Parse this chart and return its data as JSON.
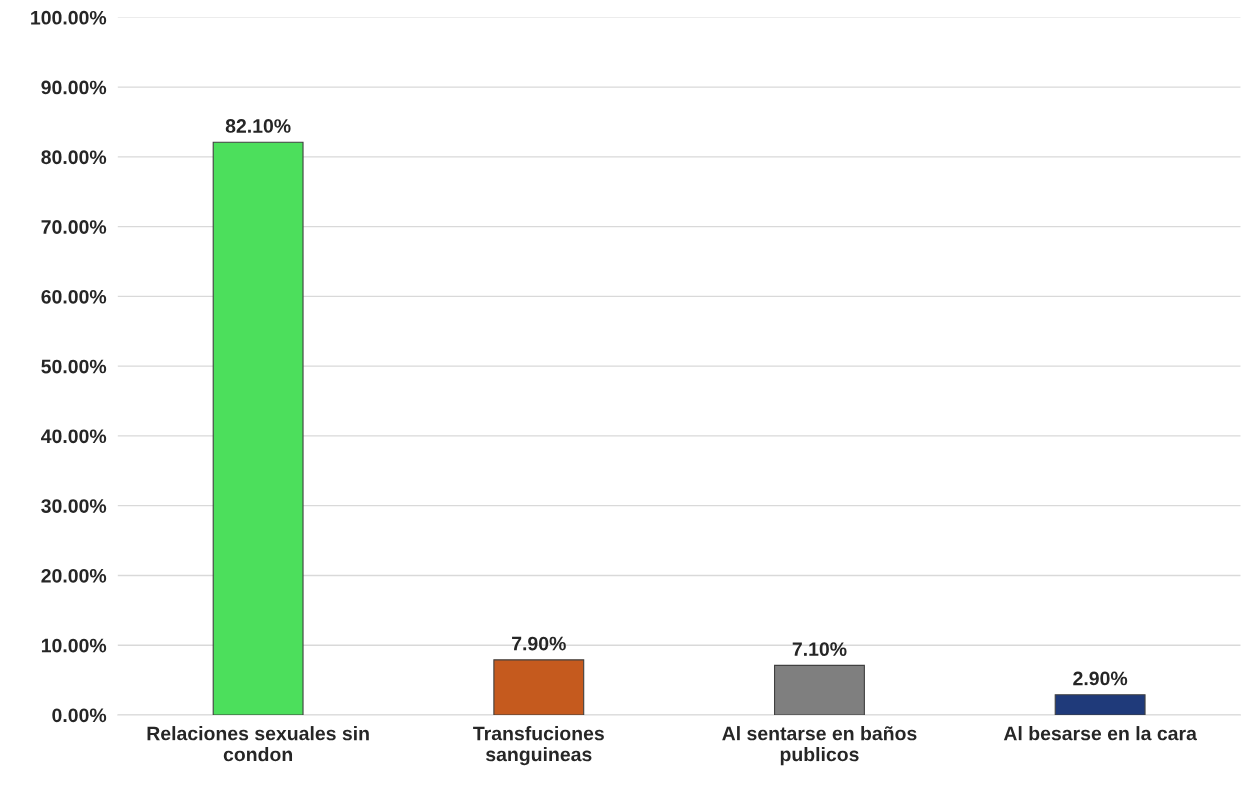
{
  "chart_data": {
    "type": "bar",
    "categories": [
      "Relaciones sexuales sin\ncondon",
      "Transfuciones\nsanguineas",
      "Al sentarse en baños\npublicos",
      "Al besarse en la cara"
    ],
    "values": [
      82.1,
      7.9,
      7.1,
      2.9
    ],
    "colors": [
      "#4cdf5c",
      "#c55a1e",
      "#7f7f7f",
      "#1f3a7a"
    ],
    "value_labels": [
      "82.10%",
      "7.90%",
      "7.10%",
      "2.90%"
    ],
    "ylim": [
      0,
      100
    ],
    "yticks": [
      {
        "value": 0,
        "label": "0.00%"
      },
      {
        "value": 10,
        "label": "10.00%"
      },
      {
        "value": 20,
        "label": "20.00%"
      },
      {
        "value": 30,
        "label": "30.00%"
      },
      {
        "value": 40,
        "label": "40.00%"
      },
      {
        "value": 50,
        "label": "50.00%"
      },
      {
        "value": 60,
        "label": "60.00%"
      },
      {
        "value": 70,
        "label": "70.00%"
      },
      {
        "value": 80,
        "label": "80.00%"
      },
      {
        "value": 90,
        "label": "90.00%"
      },
      {
        "value": 100,
        "label": "100.00%"
      }
    ],
    "grid": "y"
  }
}
